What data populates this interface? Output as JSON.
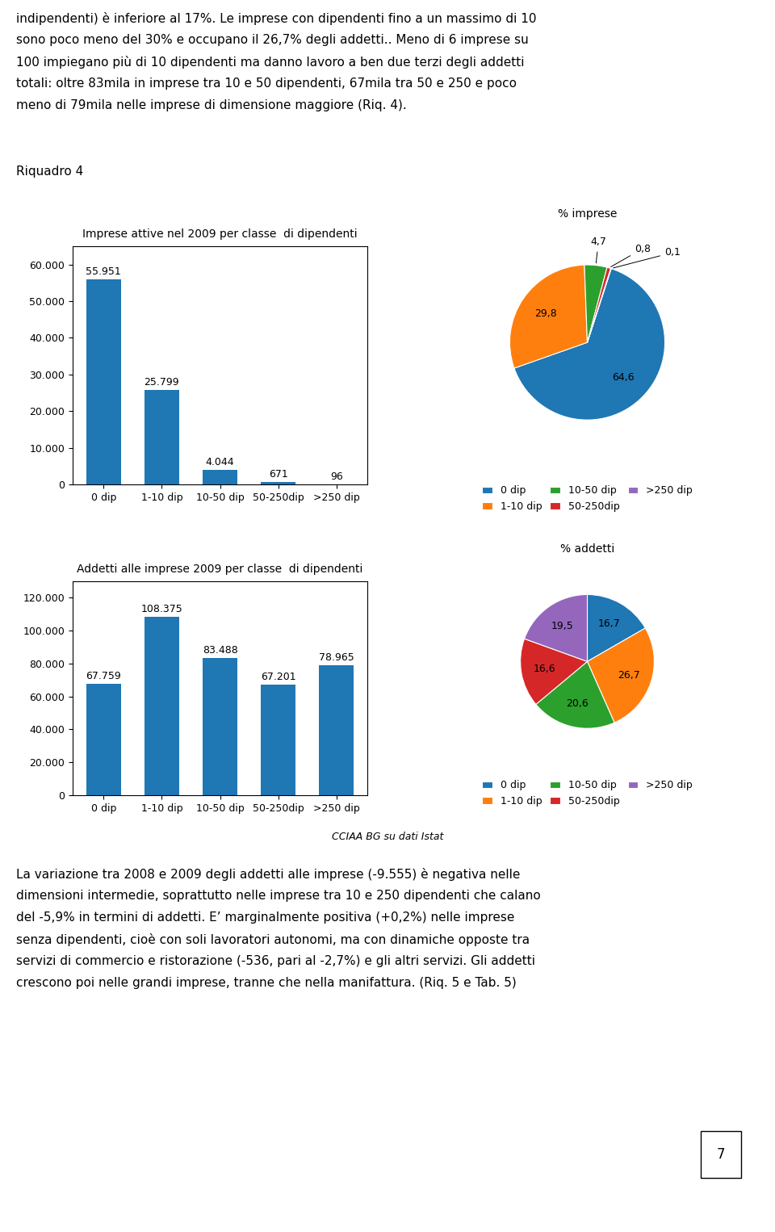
{
  "chart_data": [
    {
      "type": "bar",
      "title": "Imprese attive nel 2009 per classe  di dipendenti",
      "categories": [
        "0 dip",
        "1-10 dip",
        "10-50 dip",
        "50-250dip",
        ">250 dip"
      ],
      "values": [
        55951,
        25799,
        4044,
        671,
        96
      ],
      "value_labels": [
        "55.951",
        "25.799",
        "4.044",
        "671",
        "96"
      ],
      "data_labels": true,
      "ylim": [
        0,
        65000
      ],
      "yticks": [
        0,
        {
          "value": 10000,
          "label": "10.000"
        },
        {
          "value": 20000,
          "label": "20.000"
        },
        {
          "value": 30000,
          "label": "30.000"
        },
        {
          "value": 40000,
          "label": "40.000"
        },
        {
          "value": 50000,
          "label": "50.000"
        },
        {
          "value": 60000,
          "label": "60.000"
        }
      ]
    },
    {
      "type": "pie",
      "title": "% imprese",
      "categories": [
        "0 dip",
        "1-10 dip",
        "10-50 dip",
        "50-250dip",
        ">250 dip"
      ],
      "values": [
        64.6,
        29.8,
        4.7,
        0.8,
        0.1
      ],
      "value_labels": [
        "64,6",
        "29,8",
        "4,7",
        "0,8",
        "0,1"
      ],
      "data_labels": true,
      "legend": "lower center"
    },
    {
      "type": "bar",
      "title": "Addetti alle imprese 2009 per classe  di dipendenti",
      "categories": [
        "0 dip",
        "1-10 dip",
        "10-50 dip",
        "50-250dip",
        ">250 dip"
      ],
      "values": [
        67759,
        108375,
        83488,
        67201,
        78965
      ],
      "value_labels": [
        "67.759",
        "108.375",
        "83.488",
        "67.201",
        "78.965"
      ],
      "data_labels": true,
      "ylim": [
        0,
        130000
      ],
      "yticks": [
        0,
        {
          "value": 20000,
          "label": "20.000"
        },
        {
          "value": 40000,
          "label": "40.000"
        },
        {
          "value": 60000,
          "label": "60.000"
        },
        {
          "value": 80000,
          "label": "80.000"
        },
        {
          "value": 100000,
          "label": "100.000"
        },
        {
          "value": 120000,
          "label": "120.000"
        }
      ]
    },
    {
      "type": "pie",
      "title": "% addetti",
      "categories": [
        "0 dip",
        "1-10 dip",
        "10-50 dip",
        "50-250dip",
        ">250 dip"
      ],
      "values": [
        16.7,
        26.7,
        20.6,
        16.6,
        19.5
      ],
      "value_labels": [
        "16,7",
        "26,7",
        "20,6",
        "16,6",
        "19,5"
      ],
      "data_labels": true,
      "legend": "lower center"
    }
  ],
  "page_text_top": [
    "indipendenti) è inferiore al 17%. Le imprese con dipendenti fino a un massimo di 10",
    "sono poco meno del 30% e occupano il 26,7% degli addetti.. Meno di 6 imprese su",
    "100 impiegano più di 10 dipendenti ma danno lavoro a ben due terzi degli addetti",
    "totali: oltre 83mila in imprese tra 10 e 50 dipendenti, 67mila tra 50 e 250 e poco",
    "meno di 79mila nelle imprese di dimensione maggiore (Riq. 4)."
  ],
  "label": "Riquadro 4",
  "source": "CCIAA BG su dati Istat",
  "page_text_bottom": [
    "La variazione tra 2008 e 2009 degli addetti alle imprese (-9.555) è negativa nelle",
    "dimensioni intermedie, soprattutto nelle imprese tra 10 e 250 dipendenti che calano",
    "del -5,9% in termini di addetti. E’ marginalmente positiva (+0,2%) nelle imprese",
    "senza dipendenti, cioè con soli lavoratori autonomi, ma con dinamiche opposte tra",
    "servizi di commercio e ristorazione (-536, pari al -2,7%) e gli altri servizi. Gli addetti",
    "crescono poi nelle grandi imprese, tranne che nella manifattura. (Riq. 5 e Tab. 5)"
  ],
  "page_number": "7"
}
